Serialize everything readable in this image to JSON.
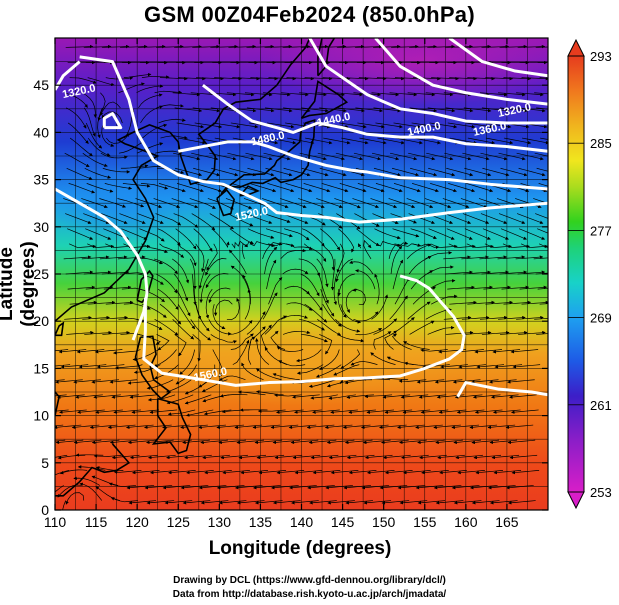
{
  "title": "GSM 00Z04Feb2024 (850.0hPa)",
  "credits": {
    "line1": "Drawing by DCL (https://www.gfd-dennou.org/library/dcl/)",
    "line2": "Data from http://database.rish.kyoto-u.ac.jp/arch/jmadata/"
  },
  "chart_data": {
    "type": "heatmap",
    "xlabel": "Longitude (degrees)",
    "ylabel": "Latitude  (degrees)",
    "xlim": [
      110,
      170
    ],
    "ylim": [
      0,
      50
    ],
    "x_ticks": [
      110,
      115,
      120,
      125,
      130,
      135,
      140,
      145,
      150,
      155,
      160,
      165
    ],
    "y_ticks": [
      0,
      5,
      10,
      15,
      20,
      25,
      30,
      35,
      40,
      45
    ],
    "colorbar": {
      "min": 253,
      "max": 293,
      "tick_labels": [
        253,
        261,
        269,
        277,
        285,
        293
      ],
      "colors": [
        "#d81ec8",
        "#8a1ec8",
        "#3c1ec8",
        "#1e5ae6",
        "#1ea0f0",
        "#18d2c8",
        "#1ed278",
        "#32d21e",
        "#aadc1e",
        "#f0e61e",
        "#f0b41e",
        "#f0781e",
        "#e63c1e"
      ]
    },
    "contour_labels": [
      {
        "text": "1320.0",
        "lon": 113,
        "lat": 44
      },
      {
        "text": "1440.0",
        "lon": 144,
        "lat": 41
      },
      {
        "text": "1400.0",
        "lon": 155,
        "lat": 40
      },
      {
        "text": "1360.0",
        "lon": 163,
        "lat": 40
      },
      {
        "text": "1320.0",
        "lon": 166,
        "lat": 42
      },
      {
        "text": "1480.0",
        "lon": 136,
        "lat": 39
      },
      {
        "text": "1520.0",
        "lon": 134,
        "lat": 31
      },
      {
        "text": "1560.0",
        "lon": 129,
        "lat": 14
      }
    ]
  }
}
